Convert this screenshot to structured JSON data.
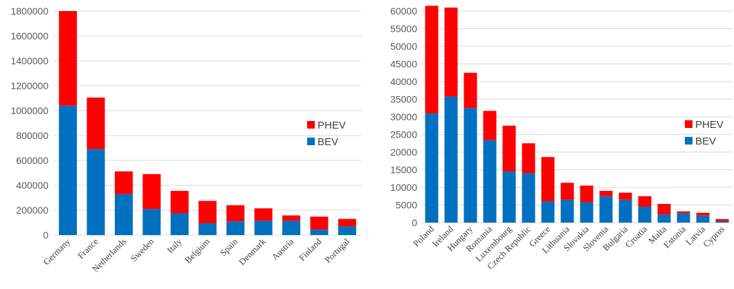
{
  "chart_data": [
    {
      "type": "bar",
      "stacked": true,
      "categories": [
        "Germany",
        "France",
        "Netherlands",
        "Sweden",
        "Italy",
        "Belgium",
        "Spain",
        "Denmark",
        "Austria",
        "Finland",
        "Portugal"
      ],
      "series": [
        {
          "name": "BEV",
          "color": "#0070c0",
          "values": [
            1040000,
            690000,
            330000,
            210000,
            175000,
            95000,
            110000,
            115000,
            115000,
            45000,
            70000
          ]
        },
        {
          "name": "PHEV",
          "color": "#ff0000",
          "values": [
            760000,
            415000,
            182000,
            280000,
            180000,
            180000,
            130000,
            100000,
            43000,
            103000,
            60000
          ]
        }
      ],
      "ylim": [
        0,
        1800000
      ],
      "yticks": [
        "0",
        "200000",
        "400000",
        "600000",
        "800000",
        "1000000",
        "1200000",
        "1400000",
        "1600000",
        "1800000"
      ],
      "grid": true,
      "legend": {
        "position": "right",
        "entries": [
          "PHEV",
          "BEV"
        ]
      }
    },
    {
      "type": "bar",
      "stacked": true,
      "categories": [
        "Poland",
        "Ireland",
        "Hungary",
        "Romania",
        "Luxembourg",
        "Czech Republic",
        "Greece",
        "Lithuania",
        "Slovakia",
        "Slovenia",
        "Bulgaria",
        "Croatia",
        "Malta",
        "Estonia",
        "Latvia",
        "Cyprus"
      ],
      "series": [
        {
          "name": "BEV",
          "color": "#0070c0",
          "values": [
            31000,
            35800,
            32500,
            23400,
            14500,
            14000,
            6000,
            6500,
            5800,
            7500,
            6500,
            4500,
            2300,
            2700,
            2000,
            400
          ]
        },
        {
          "name": "PHEV",
          "color": "#ff0000",
          "values": [
            30500,
            25200,
            10000,
            8300,
            13000,
            8500,
            12600,
            4800,
            4700,
            1500,
            2000,
            3000,
            3000,
            500,
            800,
            600
          ]
        }
      ],
      "ylim": [
        0,
        60000
      ],
      "yticks": [
        "0",
        "5000",
        "10000",
        "15000",
        "20000",
        "25000",
        "30000",
        "35000",
        "40000",
        "45000",
        "50000",
        "55000",
        "60000"
      ],
      "grid": true,
      "legend": {
        "position": "right",
        "entries": [
          "PHEV",
          "BEV"
        ]
      }
    }
  ]
}
